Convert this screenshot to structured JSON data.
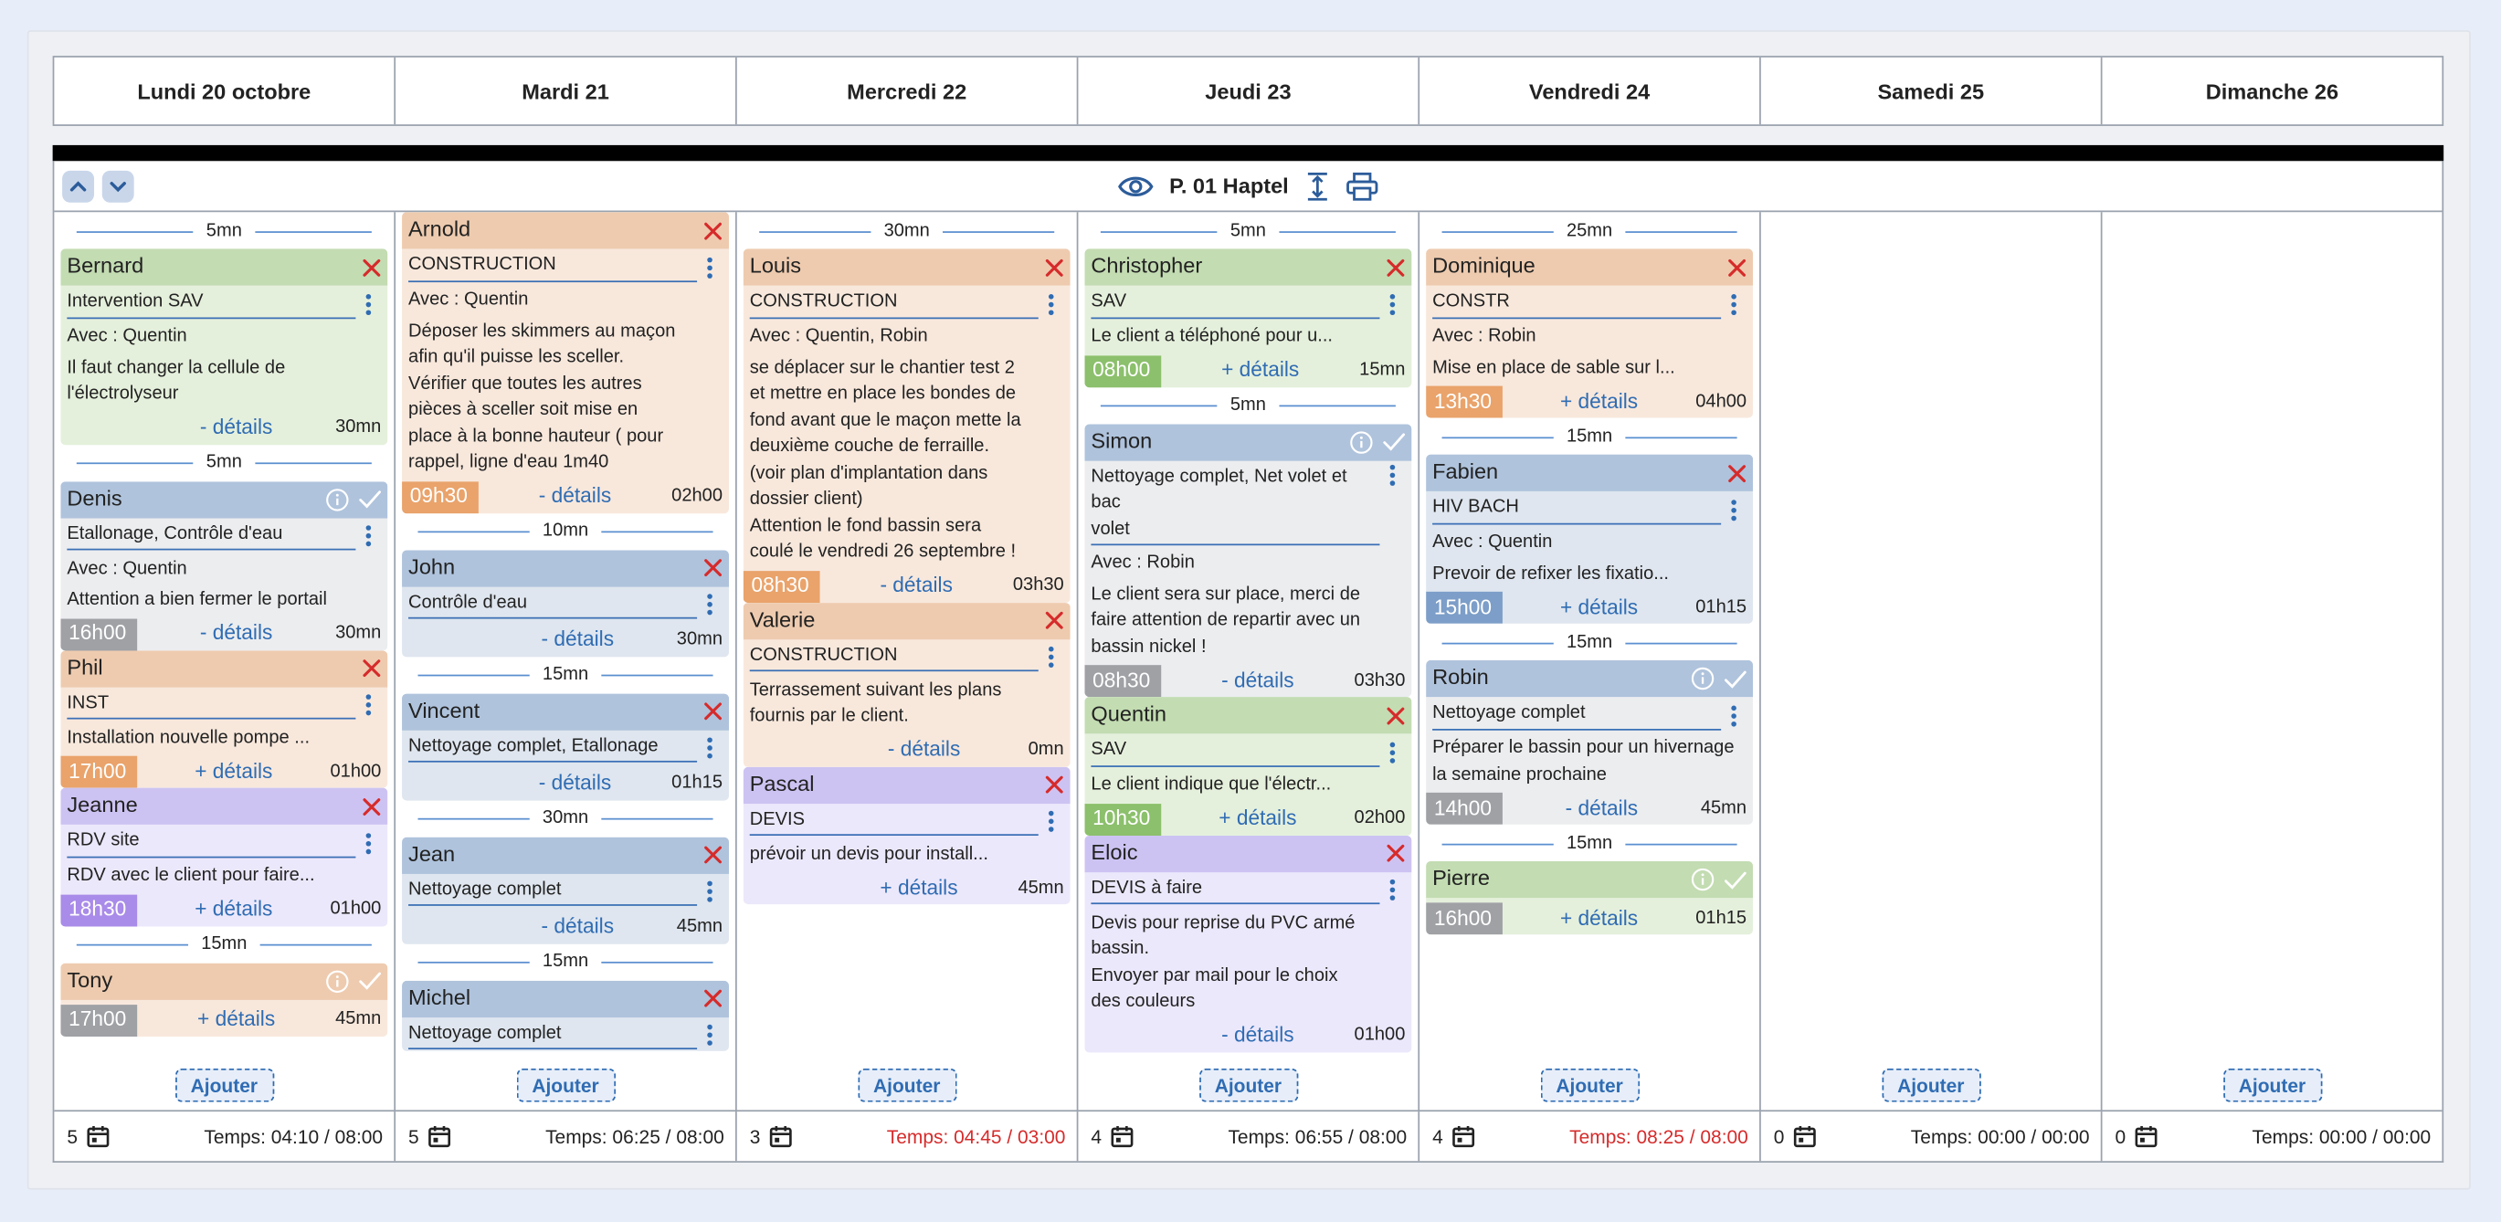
{
  "days": [
    "Lundi 20 octobre",
    "Mardi 21",
    "Mercredi 22",
    "Jeudi 23",
    "Vendredi 24",
    "Samedi 25",
    "Dimanche 26"
  ],
  "toolbar": {
    "title": "P. 01 Haptel",
    "up_icon": "chevron-up-icon",
    "down_icon": "chevron-down-icon",
    "view_icon": "eye-icon",
    "expand_icon": "expand-vertical-icon",
    "print_icon": "print-icon"
  },
  "add_label": "Ajouter",
  "colors": {
    "green": "#8cc06c",
    "orange": "#e9a36b",
    "blue": "#7c9ec8",
    "purple": "#a98be9",
    "gray": "#9fa1a5",
    "link": "#2f6cb3",
    "danger": "#d62b2b"
  },
  "columns": [
    {
      "items": [
        {
          "gap": "5mn"
        },
        {
          "color": "green",
          "name": "Bernard",
          "status": "x",
          "type": "Intervention SAV",
          "lines": [
            "Avec : Quentin",
            "Il faut changer la cellule de\nl'électrolyseur"
          ],
          "time": "",
          "details": "- détails",
          "duration": "30mn"
        },
        {
          "gap": "5mn"
        },
        {
          "color": "gray",
          "name": "Denis",
          "status": "done",
          "type": "Etallonage, Contrôle d'eau",
          "lines": [
            "Avec : Quentin",
            "Attention a bien fermer le portail"
          ],
          "time": "16h00",
          "details": "- détails",
          "duration": "30mn"
        },
        {
          "color": "orange",
          "name": "Phil",
          "status": "x",
          "type": "INST",
          "lines": [
            "Installation nouvelle pompe ..."
          ],
          "time": "17h00",
          "details": "+ détails",
          "duration": "01h00"
        },
        {
          "color": "purple",
          "name": "Jeanne",
          "status": "x",
          "type": "RDV site",
          "lines": [
            "RDV avec le client pour faire..."
          ],
          "time": "18h30",
          "details": "+ détails",
          "duration": "01h00"
        },
        {
          "gap": "15mn"
        },
        {
          "color": "orange",
          "name": "Tony",
          "status": "done",
          "type": "",
          "lines": [],
          "time": "17h00",
          "timeColor": "gray",
          "details": "+ détails",
          "duration": "45mn"
        }
      ]
    },
    {
      "items": [
        {
          "color": "orange",
          "name": "Arnold",
          "status": "x",
          "type": "CONSTRUCTION",
          "lines": [
            "Avec : Quentin",
            "Déposer les skimmers au maçon\nafin qu'il puisse les sceller.\nVérifier que toutes les autres\npièces à sceller soit mise en\nplace à la bonne hauteur ( pour\nrappel, ligne d'eau 1m40"
          ],
          "time": "09h30",
          "details": "- détails",
          "duration": "02h00"
        },
        {
          "gap": "10mn"
        },
        {
          "color": "blue",
          "name": "John",
          "status": "x",
          "type": "Contrôle d'eau",
          "lines": [],
          "time": "",
          "details": "- détails",
          "duration": "30mn"
        },
        {
          "gap": "15mn"
        },
        {
          "color": "blue",
          "name": "Vincent",
          "status": "x",
          "type": "Nettoyage complet, Etallonage",
          "lines": [],
          "time": "",
          "details": "- détails",
          "duration": "01h15"
        },
        {
          "gap": "30mn"
        },
        {
          "color": "blue",
          "name": "Jean",
          "status": "x",
          "type": "Nettoyage complet",
          "lines": [],
          "time": "",
          "details": "- détails",
          "duration": "45mn"
        },
        {
          "gap": "15mn"
        },
        {
          "color": "blue",
          "name": "Michel",
          "status": "x",
          "type": "Nettoyage complet",
          "lines": [],
          "time": "",
          "details": "",
          "duration": ""
        }
      ]
    },
    {
      "items": [
        {
          "gap": "30mn"
        },
        {
          "color": "orange",
          "name": "Louis",
          "status": "x",
          "type": "CONSTRUCTION",
          "lines": [
            "Avec : Quentin, Robin",
            "se déplacer sur le chantier test 2\net mettre en place les bondes de\nfond avant que le maçon mette la\ndeuxième couche de ferraille.\n(voir plan d'implantation dans\ndossier client)\nAttention le fond bassin sera\ncoulé le vendredi 26 septembre !"
          ],
          "time": "08h30",
          "details": "- détails",
          "duration": "03h30"
        },
        {
          "color": "orange",
          "name": "Valerie",
          "status": "x",
          "type": "CONSTRUCTION",
          "lines": [
            "Terrassement suivant les plans\nfournis par le client."
          ],
          "time": "",
          "details": "- détails",
          "duration": "0mn"
        },
        {
          "color": "purple",
          "name": "Pascal",
          "status": "x",
          "type": "DEVIS",
          "lines": [
            "prévoir un devis pour install..."
          ],
          "time": "",
          "details": "+ détails",
          "duration": "45mn"
        }
      ]
    },
    {
      "items": [
        {
          "gap": "5mn"
        },
        {
          "color": "green",
          "name": "Christopher",
          "status": "x",
          "type": "SAV",
          "lines": [
            "Le client a téléphoné pour u..."
          ],
          "time": "08h00",
          "details": "+ détails",
          "duration": "15mn"
        },
        {
          "gap": "5mn"
        },
        {
          "color": "gray",
          "name": "Simon",
          "status": "done",
          "type": "Nettoyage complet, Net volet et bac\nvolet",
          "lines": [
            "Avec : Robin",
            "Le client sera sur place, merci de\nfaire attention de repartir avec un\nbassin nickel !"
          ],
          "time": "08h30",
          "details": "- détails",
          "duration": "03h30"
        },
        {
          "color": "green",
          "name": "Quentin",
          "status": "x",
          "type": "SAV",
          "lines": [
            "Le client indique que l'électr..."
          ],
          "time": "10h30",
          "details": "+ détails",
          "duration": "02h00"
        },
        {
          "color": "purple",
          "name": "Eloic",
          "status": "x",
          "type": "DEVIS à faire",
          "lines": [
            "Devis pour reprise du PVC armé\nbassin.\nEnvoyer par mail pour le choix\ndes couleurs"
          ],
          "time": "",
          "details": "- détails",
          "duration": "01h00"
        }
      ]
    },
    {
      "items": [
        {
          "gap": "25mn"
        },
        {
          "color": "orange",
          "name": "Dominique",
          "status": "x",
          "type": "CONSTR",
          "lines": [
            "Avec : Robin",
            "Mise en place de sable sur l..."
          ],
          "time": "13h30",
          "details": "+ détails",
          "duration": "04h00"
        },
        {
          "gap": "15mn"
        },
        {
          "color": "blue",
          "name": "Fabien",
          "status": "x",
          "type": "HIV BACH",
          "lines": [
            "Avec : Quentin",
            "Prevoir de refixer les fixatio..."
          ],
          "time": "15h00",
          "details": "+ détails",
          "duration": "01h15"
        },
        {
          "gap": "15mn"
        },
        {
          "color": "gray",
          "name": "Robin",
          "status": "done",
          "type": "Nettoyage complet",
          "lines": [
            "Préparer le bassin pour un hivernage\nla semaine prochaine"
          ],
          "time": "14h00",
          "details": "- détails",
          "duration": "45mn"
        },
        {
          "gap": "15mn"
        },
        {
          "color": "green",
          "name": "Pierre",
          "status": "done",
          "type": "",
          "lines": [],
          "time": "16h00",
          "timeColor": "gray",
          "details": "+ détails",
          "duration": "01h15"
        }
      ]
    },
    {
      "items": []
    },
    {
      "items": []
    }
  ],
  "footer": [
    {
      "count": "5",
      "temps": "Temps: 04:10 / 08:00",
      "over": false
    },
    {
      "count": "5",
      "temps": "Temps: 06:25 / 08:00",
      "over": false
    },
    {
      "count": "3",
      "temps": "Temps: 04:45 / 03:00",
      "over": true
    },
    {
      "count": "4",
      "temps": "Temps: 06:55 / 08:00",
      "over": false
    },
    {
      "count": "4",
      "temps": "Temps: 08:25 / 08:00",
      "over": true
    },
    {
      "count": "0",
      "temps": "Temps: 00:00 / 00:00",
      "over": false
    },
    {
      "count": "0",
      "temps": "Temps: 00:00 / 00:00",
      "over": false
    }
  ]
}
